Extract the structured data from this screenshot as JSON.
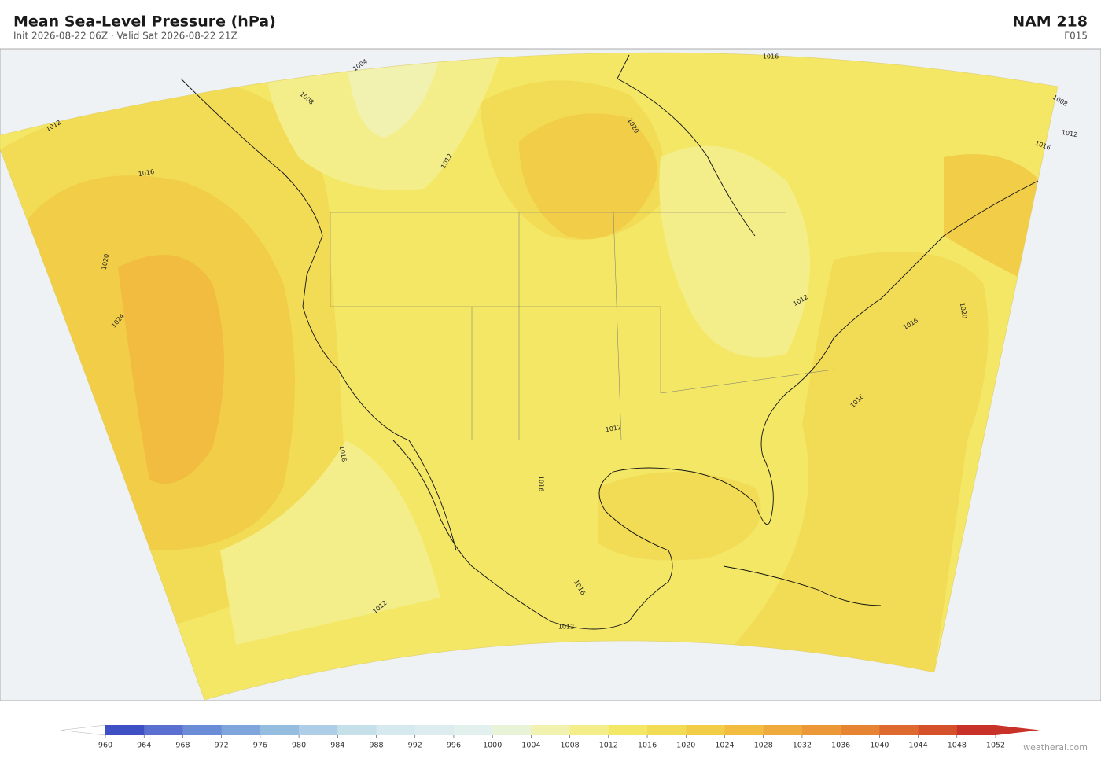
{
  "header": {
    "title": "Mean Sea-Level Pressure  (hPa)",
    "subtitle": "Init 2026-08-22 06Z  ·  Valid Sat 2026-08-22 21Z",
    "model": "NAM  218",
    "forecast": "F015"
  },
  "colorbar": {
    "ticks": [
      960,
      964,
      968,
      972,
      976,
      980,
      984,
      988,
      992,
      996,
      1000,
      1004,
      1008,
      1012,
      1016,
      1020,
      1024,
      1028,
      1032,
      1036,
      1040,
      1044,
      1048,
      1052
    ],
    "colors": [
      "#3f4fc4",
      "#5a6fd0",
      "#6b8cd6",
      "#7fa6da",
      "#95bde0",
      "#aecde6",
      "#c6e0ea",
      "#d5e9ee",
      "#dcecef",
      "#e2f0ee",
      "#e9f3d8",
      "#f2f2b0",
      "#f4ee8a",
      "#f3e765",
      "#f3dc55",
      "#f2cd48",
      "#f1bc40",
      "#eeaa3c",
      "#ec9838",
      "#e78434",
      "#df6a2f",
      "#d4512b",
      "#c83228"
    ]
  },
  "contour_labels": [
    1004,
    1008,
    1012,
    1016,
    1020,
    1024,
    1016,
    1008,
    1012,
    1016,
    1020,
    1012,
    1016,
    1012,
    1012,
    1016,
    1016,
    1020,
    1012,
    1016,
    1012,
    1016
  ],
  "watermark": "weatherai.com"
}
